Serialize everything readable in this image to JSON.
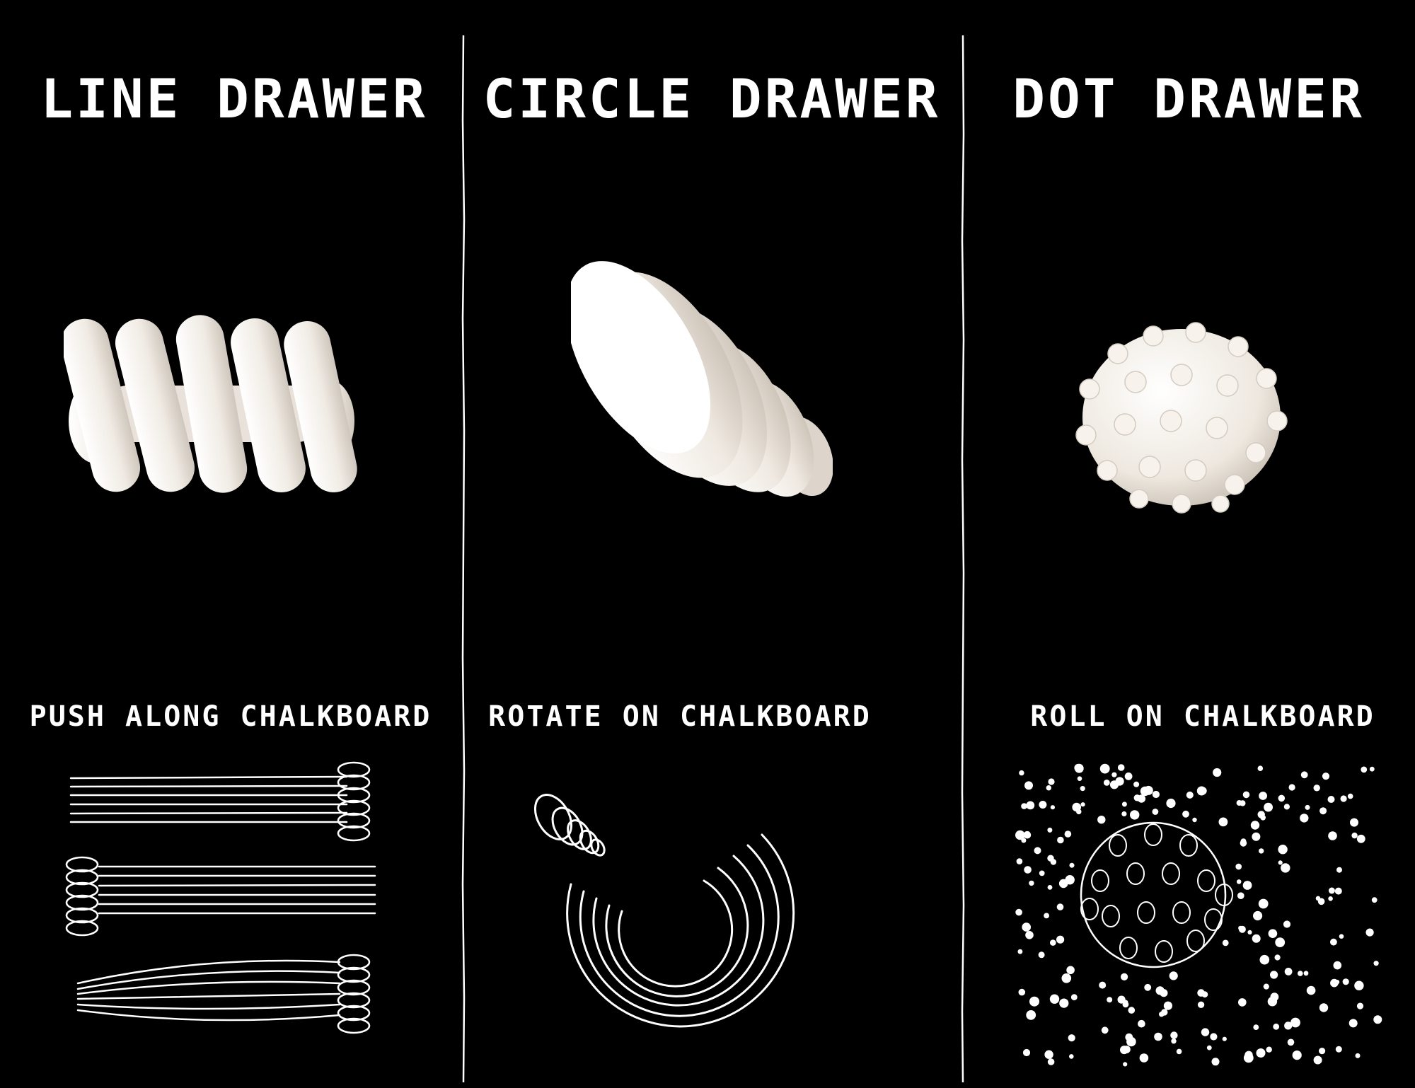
{
  "columns": [
    {
      "title": "LINE DRAWER",
      "instruction": "PUSH ALONG CHALKBOARD",
      "object": "line-drawer-tool",
      "sketch": "parallel-lines"
    },
    {
      "title": "CIRCLE DRAWER",
      "instruction": "ROTATE ON CHALKBOARD",
      "object": "circle-drawer-tool",
      "sketch": "concentric-arcs"
    },
    {
      "title": "DOT DRAWER",
      "instruction": "ROLL ON CHALKBOARD",
      "object": "dot-drawer-tool",
      "sketch": "scattered-dots"
    }
  ],
  "colors": {
    "background": "#000000",
    "chalk": "#ffffff",
    "object": "#f4efe8"
  }
}
